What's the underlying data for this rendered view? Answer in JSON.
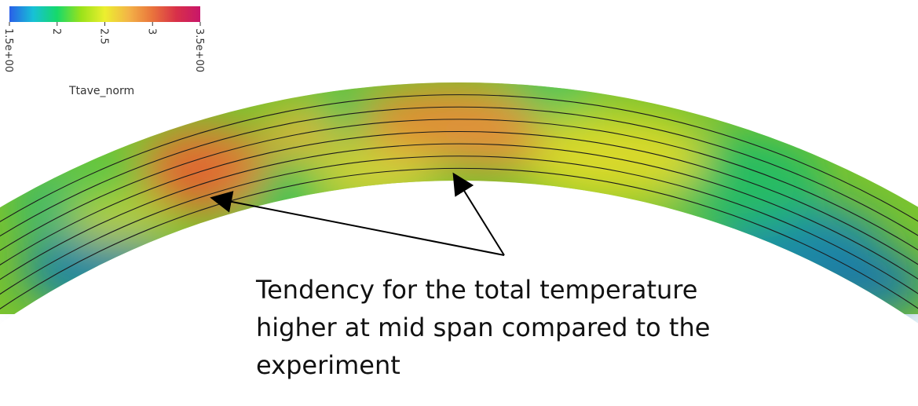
{
  "colorbar": {
    "title": "Ttave_norm",
    "range": [
      1.5,
      3.5
    ],
    "ticks": [
      {
        "value": 1.5,
        "label": "1.5e+00"
      },
      {
        "value": 2.0,
        "label": "2"
      },
      {
        "value": 2.5,
        "label": "2.5"
      },
      {
        "value": 3.0,
        "label": "3"
      },
      {
        "value": 3.5,
        "label": "3.5e+00"
      }
    ],
    "colors": [
      "#2a5fe8",
      "#17c1d6",
      "#16d96a",
      "#9ae21a",
      "#ecef2f",
      "#f3b347",
      "#e9733c",
      "#d83049",
      "#c8166a"
    ]
  },
  "annotation": {
    "lines": [
      "Tendency for the total temperature",
      "higher at mid span compared to the",
      "experiment"
    ]
  }
}
